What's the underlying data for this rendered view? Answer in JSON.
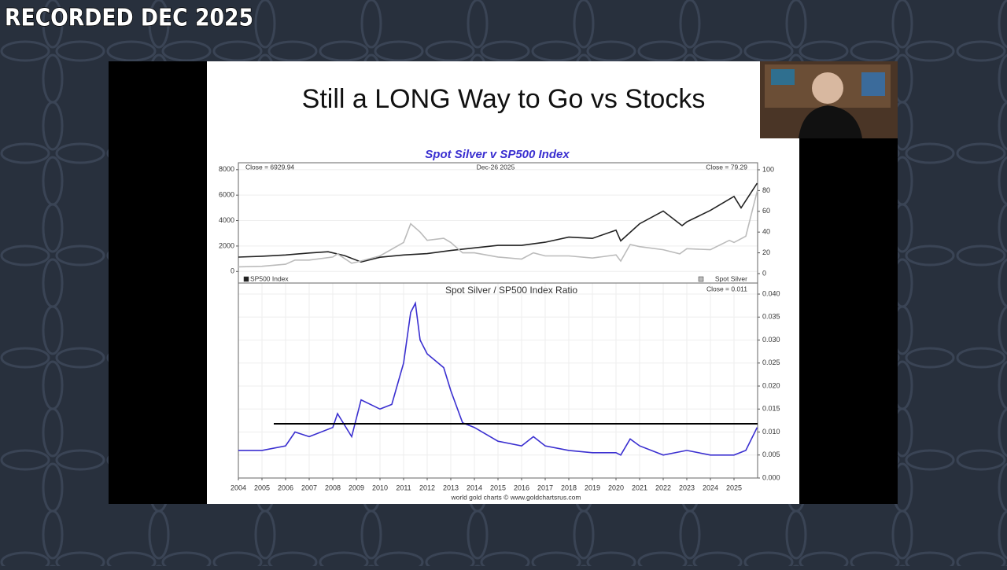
{
  "banner": "RECORDED DEC 2025",
  "slide_title": "Still a LONG Way to Go vs Stocks",
  "chart_data": [
    {
      "type": "line",
      "title": "Spot Silver v SP500 Index",
      "annotations": [
        "Close = 6929.94",
        "Dec-26 2025",
        "Close = 79.29"
      ],
      "xlim": [
        2004,
        2026
      ],
      "ylim": [
        -909,
        8545
      ],
      "yticks": [
        0,
        2000,
        4000,
        6000,
        8000
      ],
      "y2lim": [
        -9.1,
        106.8
      ],
      "y2ticks": [
        0,
        20,
        40,
        60,
        80,
        100
      ],
      "grid": true,
      "series": [
        {
          "name": "SP500 Index",
          "color": "#222222",
          "x": [
            2004,
            2005,
            2006,
            2007,
            2007.8,
            2008.5,
            2009.2,
            2010,
            2011,
            2012,
            2013,
            2014,
            2015,
            2016,
            2017,
            2018,
            2019,
            2020,
            2020.2,
            2021,
            2022,
            2022.8,
            2023,
            2024,
            2025,
            2025.3,
            2025.98
          ],
          "values": [
            1130,
            1200,
            1300,
            1450,
            1550,
            1250,
            750,
            1120,
            1300,
            1400,
            1650,
            1850,
            2050,
            2050,
            2300,
            2700,
            2600,
            3250,
            2400,
            3750,
            4750,
            3600,
            3900,
            4800,
            5900,
            5000,
            6930
          ]
        },
        {
          "name": "Spot Silver",
          "color": "#bbbbbb",
          "axis": "y2",
          "x": [
            2004,
            2005,
            2006,
            2006.4,
            2007,
            2008,
            2008.2,
            2008.8,
            2009,
            2010,
            2011,
            2011.3,
            2011.7,
            2012,
            2012.7,
            2013,
            2013.5,
            2014,
            2015,
            2016,
            2016.5,
            2017,
            2018,
            2019,
            2020,
            2020.2,
            2020.6,
            2021,
            2022,
            2022.7,
            2023,
            2024,
            2024.8,
            2025,
            2025.5,
            2025.98
          ],
          "values": [
            6.5,
            7,
            9,
            13,
            13,
            16,
            19,
            10,
            11,
            17,
            30,
            48,
            40,
            32,
            34,
            30,
            20,
            20,
            16,
            14,
            20,
            17,
            17,
            15,
            18,
            12,
            28,
            26,
            23,
            19,
            24,
            23,
            32,
            30,
            36,
            79.29
          ]
        }
      ]
    },
    {
      "type": "line",
      "title": "Spot Silver  /  SP500 Index Ratio",
      "annotations": [
        "Close = 0.011"
      ],
      "source": "world gold charts © www.goldchartsrus.com",
      "xlim": [
        2004,
        2026
      ],
      "xticks": [
        2004,
        2005,
        2006,
        2007,
        2008,
        2009,
        2010,
        2011,
        2012,
        2013,
        2014,
        2015,
        2016,
        2017,
        2018,
        2019,
        2020,
        2021,
        2022,
        2023,
        2024,
        2025
      ],
      "ylim": [
        0,
        0.0424
      ],
      "y_axis_side": "right",
      "yticks": [
        {
          "value": 0,
          "label": "0.000"
        },
        {
          "value": 0.005,
          "label": "0.005"
        },
        {
          "value": 0.01,
          "label": "0.010"
        },
        {
          "value": 0.015,
          "label": "0.015"
        },
        {
          "value": 0.02,
          "label": "0.020"
        },
        {
          "value": 0.025,
          "label": "0.025"
        },
        {
          "value": 0.03,
          "label": "0.030"
        },
        {
          "value": 0.035,
          "label": "0.035"
        },
        {
          "value": 0.04,
          "label": "0.040"
        }
      ],
      "grid": true,
      "hline": {
        "y": 0.0118,
        "x": [
          2005.5,
          2026
        ],
        "color": "#000000"
      },
      "series": [
        {
          "color": "#3a2fd0",
          "x": [
            2004,
            2005,
            2006,
            2006.4,
            2007,
            2008,
            2008.2,
            2008.8,
            2009.2,
            2010,
            2010.5,
            2011,
            2011.3,
            2011.5,
            2011.7,
            2012,
            2012.7,
            2013,
            2013.5,
            2014,
            2015,
            2016,
            2016.5,
            2017,
            2018,
            2019,
            2020,
            2020.2,
            2020.6,
            2021,
            2022,
            2023,
            2024,
            2025,
            2025.5,
            2025.98
          ],
          "values": [
            0.006,
            0.006,
            0.007,
            0.01,
            0.009,
            0.011,
            0.014,
            0.009,
            0.017,
            0.015,
            0.016,
            0.025,
            0.036,
            0.038,
            0.03,
            0.027,
            0.024,
            0.019,
            0.012,
            0.011,
            0.008,
            0.007,
            0.009,
            0.007,
            0.006,
            0.0055,
            0.0055,
            0.005,
            0.0085,
            0.007,
            0.005,
            0.006,
            0.005,
            0.005,
            0.006,
            0.011
          ]
        }
      ]
    }
  ]
}
